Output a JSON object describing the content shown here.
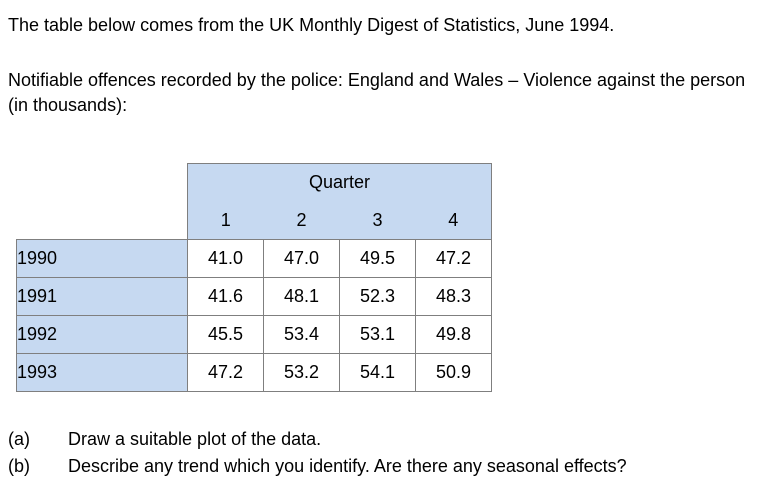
{
  "intro": "The table below comes from the UK Monthly Digest of Statistics, June 1994.",
  "heading": "Notifiable offences recorded by the police: England and Wales – Violence against the person (in thousands):",
  "table": {
    "group_header": "Quarter",
    "columns": [
      "1",
      "2",
      "3",
      "4"
    ],
    "rows": [
      {
        "year": "1990",
        "values": [
          "41.0",
          "47.0",
          "49.5",
          "47.2"
        ]
      },
      {
        "year": "1991",
        "values": [
          "41.6",
          "48.1",
          "52.3",
          "48.3"
        ]
      },
      {
        "year": "1992",
        "values": [
          "45.5",
          "53.4",
          "53.1",
          "49.8"
        ]
      },
      {
        "year": "1993",
        "values": [
          "47.2",
          "53.2",
          "54.1",
          "50.9"
        ]
      }
    ]
  },
  "questions": [
    {
      "label": "(a)",
      "text": "Draw a suitable plot of the data."
    },
    {
      "label": "(b)",
      "text": "Describe any trend which you identify. Are there any seasonal effects?"
    }
  ]
}
